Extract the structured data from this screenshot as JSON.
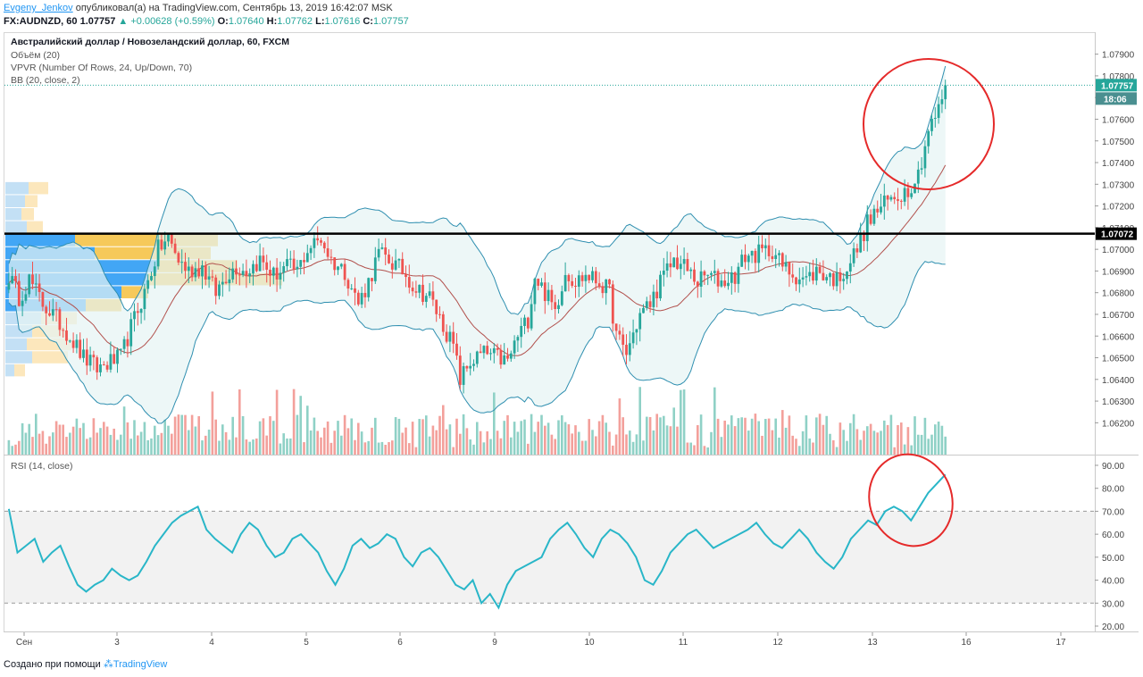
{
  "header": {
    "author": "Evgeny_Jenkov",
    "published": "опубликовал(а) на TradingView.com, Сентябрь 13, 2019 16:42:07 MSK",
    "symbol": "FX:AUDNZD, 60",
    "last": "1.07757",
    "change": "▲ +0.00628 (+0.59%)",
    "o_label": "O:",
    "o_value": "1.07640",
    "h_label": "H:",
    "h_value": "1.07762",
    "l_label": "L:",
    "l_value": "1.07616",
    "c_label": "C:",
    "c_value": "1.07757"
  },
  "legend": {
    "title": "Австралийский доллар / Новозеландский доллар, 60, FXCM",
    "volume": "Объём (20)",
    "vpvr": "VPVR (Number Of Rows, 24, Up/Down, 70)",
    "bb": "BB (20, close, 2)",
    "rsi": "RSI (14, close)"
  },
  "footer": {
    "created": "Создано при помощи",
    "brand": "TradingView"
  },
  "colors": {
    "up": "#26a69a",
    "down": "#ef5350",
    "bb_band": "#2f8fb0",
    "bb_basis": "#b2514d",
    "rsi": "#29b6c8",
    "annotation": "#e52a2a",
    "vpvr_blue": "#2196f3",
    "vpvr_yellow": "#f5bf3d"
  },
  "chart_data": [
    {
      "type": "candlestick",
      "title": "Австралийский доллар / Новозеландский доллар, 60, FXCM",
      "ylim": [
        1.0615,
        1.0795
      ],
      "y_ticks": [
        "1.07900",
        "1.07800",
        "1.07700",
        "1.07600",
        "1.07500",
        "1.07400",
        "1.07300",
        "1.07200",
        "1.07100",
        "1.07000",
        "1.06900",
        "1.06800",
        "1.06700",
        "1.06600",
        "1.06500",
        "1.06400",
        "1.06300",
        "1.06200"
      ],
      "x_ticks": [
        "Сен",
        "3",
        "4",
        "5",
        "6",
        "9",
        "10",
        "11",
        "12",
        "13",
        "16",
        "17"
      ],
      "last_price_label": "1.07757",
      "countdown_label": "18:06",
      "horizontal_line": {
        "value": 1.07072,
        "label": "1.07072"
      },
      "anchors": [
        [
          0,
          1.0688
        ],
        [
          3,
          1.0678
        ],
        [
          6,
          1.0686
        ],
        [
          10,
          1.0675
        ],
        [
          14,
          1.0668
        ],
        [
          18,
          1.066
        ],
        [
          22,
          1.065
        ],
        [
          26,
          1.0645
        ],
        [
          30,
          1.0648
        ],
        [
          33,
          1.065
        ],
        [
          36,
          1.0664
        ],
        [
          40,
          1.068
        ],
        [
          44,
          1.07
        ],
        [
          47,
          1.0705
        ],
        [
          50,
          1.0695
        ],
        [
          53,
          1.069
        ],
        [
          57,
          1.0692
        ],
        [
          61,
          1.068
        ],
        [
          64,
          1.0688
        ],
        [
          67,
          1.0692
        ],
        [
          70,
          1.069
        ],
        [
          74,
          1.0695
        ],
        [
          78,
          1.0688
        ],
        [
          82,
          1.0692
        ],
        [
          85,
          1.069
        ],
        [
          88,
          1.07
        ],
        [
          92,
          1.0705
        ],
        [
          95,
          1.0695
        ],
        [
          99,
          1.069
        ],
        [
          103,
          1.0675
        ],
        [
          106,
          1.0685
        ],
        [
          109,
          1.0698
        ],
        [
          112,
          1.0695
        ],
        [
          116,
          1.069
        ],
        [
          120,
          1.0682
        ],
        [
          124,
          1.0678
        ],
        [
          128,
          1.0665
        ],
        [
          131,
          1.0655
        ],
        [
          133,
          1.064
        ],
        [
          136,
          1.0648
        ],
        [
          140,
          1.0652
        ],
        [
          144,
          1.065
        ],
        [
          147,
          1.0648
        ],
        [
          150,
          1.066
        ],
        [
          153,
          1.0668
        ],
        [
          155,
          1.0688
        ],
        [
          158,
          1.068
        ],
        [
          161,
          1.0672
        ],
        [
          164,
          1.069
        ],
        [
          167,
          1.0685
        ],
        [
          170,
          1.0688
        ],
        [
          174,
          1.0685
        ],
        [
          177,
          1.068
        ],
        [
          179,
          1.066
        ],
        [
          182,
          1.0652
        ],
        [
          186,
          1.067
        ],
        [
          189,
          1.0675
        ],
        [
          192,
          1.0685
        ],
        [
          196,
          1.0695
        ],
        [
          199,
          1.0692
        ],
        [
          203,
          1.0685
        ],
        [
          206,
          1.0688
        ],
        [
          210,
          1.0685
        ],
        [
          214,
          1.0688
        ],
        [
          217,
          1.0697
        ],
        [
          221,
          1.0698
        ],
        [
          225,
          1.07
        ],
        [
          228,
          1.0692
        ],
        [
          232,
          1.0688
        ],
        [
          235,
          1.0686
        ],
        [
          238,
          1.069
        ],
        [
          241,
          1.0688
        ],
        [
          244,
          1.0686
        ],
        [
          247,
          1.0692
        ],
        [
          250,
          1.07
        ],
        [
          253,
          1.0712
        ],
        [
          256,
          1.0718
        ],
        [
          259,
          1.0722
        ],
        [
          262,
          1.0725
        ],
        [
          265,
          1.0728
        ],
        [
          268,
          1.0735
        ],
        [
          271,
          1.0755
        ],
        [
          274,
          1.0764
        ],
        [
          276,
          1.0776
        ]
      ]
    },
    {
      "type": "line",
      "title": "RSI (14, close)",
      "ylim": [
        20,
        90
      ],
      "y_ticks": [
        "90.00",
        "80.00",
        "70.00",
        "60.00",
        "50.00",
        "40.00",
        "30.00",
        "20.00"
      ],
      "band": [
        30,
        70
      ],
      "values": [
        71,
        52,
        55,
        58,
        48,
        52,
        55,
        46,
        38,
        35,
        38,
        40,
        45,
        42,
        40,
        42,
        48,
        55,
        60,
        65,
        68,
        70,
        72,
        62,
        58,
        55,
        52,
        60,
        65,
        62,
        55,
        50,
        52,
        58,
        60,
        56,
        52,
        44,
        38,
        45,
        55,
        58,
        54,
        56,
        60,
        58,
        50,
        46,
        52,
        54,
        50,
        44,
        38,
        36,
        40,
        30,
        34,
        28,
        38,
        44,
        46,
        48,
        50,
        58,
        62,
        65,
        60,
        54,
        50,
        58,
        62,
        60,
        56,
        50,
        40,
        38,
        44,
        52,
        56,
        60,
        62,
        58,
        54,
        56,
        58,
        60,
        62,
        65,
        60,
        56,
        54,
        58,
        62,
        58,
        52,
        48,
        45,
        50,
        58,
        62,
        66,
        64,
        70,
        72,
        70,
        66,
        72,
        78,
        82,
        86
      ]
    }
  ]
}
